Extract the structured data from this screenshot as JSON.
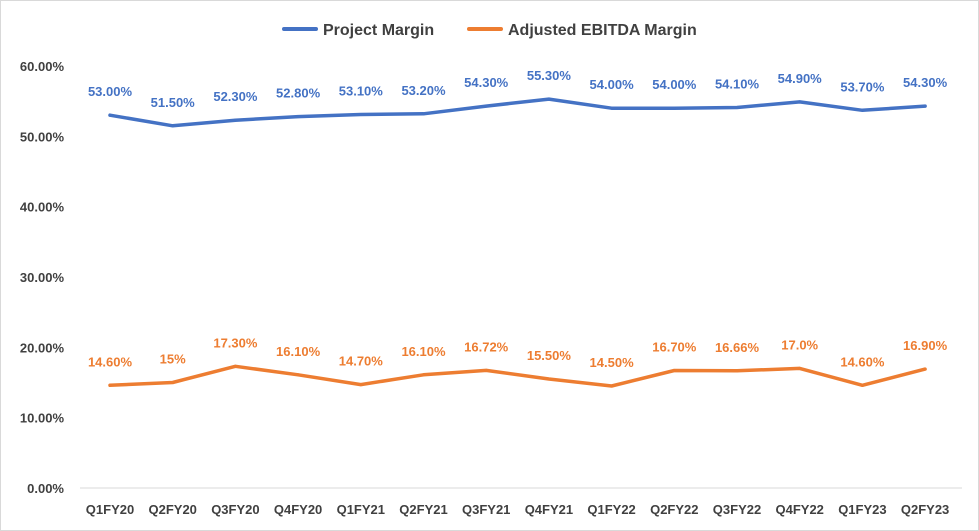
{
  "chart_data": {
    "type": "line",
    "categories": [
      "Q1FY20",
      "Q2FY20",
      "Q3FY20",
      "Q4FY20",
      "Q1FY21",
      "Q2FY21",
      "Q3FY21",
      "Q4FY21",
      "Q1FY22",
      "Q2FY22",
      "Q3FY22",
      "Q4FY22",
      "Q1FY23",
      "Q2FY23"
    ],
    "ylim": [
      0,
      60
    ],
    "yticks": [
      0,
      10,
      20,
      30,
      40,
      50,
      60
    ],
    "ytick_labels": [
      "0.00%",
      "10.00%",
      "20.00%",
      "30.00%",
      "40.00%",
      "50.00%",
      "60.00%"
    ],
    "grid": false,
    "legend_position": "top-center",
    "series": [
      {
        "name": "Project Margin",
        "color": "#4472c4",
        "values": [
          53.0,
          51.5,
          52.3,
          52.8,
          53.1,
          53.2,
          54.3,
          55.3,
          54.0,
          54.0,
          54.1,
          54.9,
          53.7,
          54.3
        ],
        "labels": [
          "53.00%",
          "51.50%",
          "52.30%",
          "52.80%",
          "53.10%",
          "53.20%",
          "54.30%",
          "55.30%",
          "54.00%",
          "54.00%",
          "54.10%",
          "54.90%",
          "53.70%",
          "54.30%"
        ]
      },
      {
        "name": "Adjusted EBITDA Margin",
        "color": "#ed7d31",
        "values": [
          14.6,
          15.0,
          17.3,
          16.1,
          14.7,
          16.1,
          16.72,
          15.5,
          14.5,
          16.7,
          16.66,
          17.0,
          14.6,
          16.9
        ],
        "labels": [
          "14.60%",
          "15%",
          "17.30%",
          "16.10%",
          "14.70%",
          "16.10%",
          "16.72%",
          "15.50%",
          "14.50%",
          "16.70%",
          "16.66%",
          "17.0%",
          "14.60%",
          "16.90%"
        ]
      }
    ]
  }
}
